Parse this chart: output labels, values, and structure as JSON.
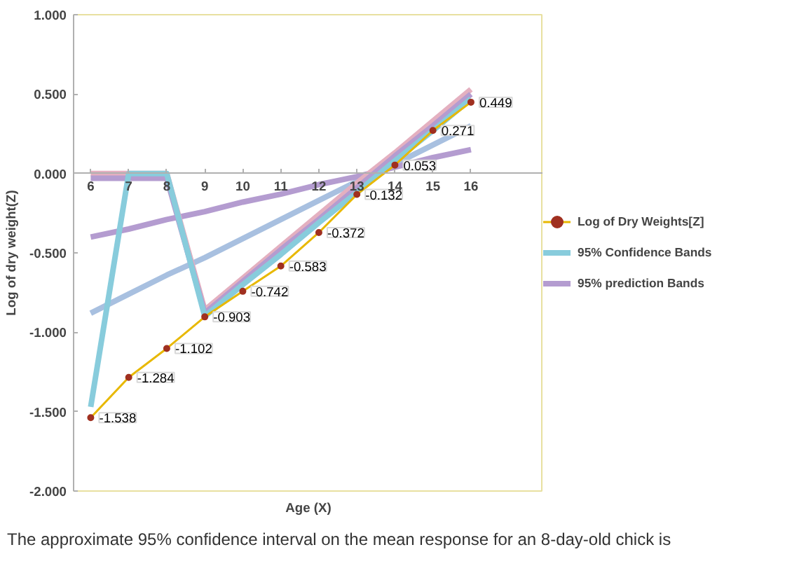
{
  "chart_data": {
    "type": "line",
    "xlabel": "Age (X)",
    "ylabel": "Log of dry weight(Z)",
    "x": [
      6,
      7,
      8,
      9,
      10,
      11,
      12,
      13,
      14,
      15,
      16
    ],
    "xlim": [
      5.55,
      17.9
    ],
    "xticks": [
      6,
      7,
      8,
      9,
      10,
      11,
      12,
      13,
      14,
      15,
      16
    ],
    "ylim": [
      -2,
      1
    ],
    "yticks": [
      {
        "value": -2,
        "label": "-2.000"
      },
      {
        "value": -1.5,
        "label": "-1.500"
      },
      {
        "value": -1,
        "label": "-1.000"
      },
      {
        "value": -0.5,
        "label": "-0.500"
      },
      {
        "value": 0,
        "label": "0.000"
      },
      {
        "value": 0.5,
        "label": "0.500"
      },
      {
        "value": 1,
        "label": "1.000"
      }
    ],
    "grid": false,
    "legend": "right",
    "annotations": [
      "The approximate 95% confidence interval on the mean response for an 8-day-old chick is"
    ],
    "series": [
      {
        "color": "#a8c0e0",
        "values": [
          -0.88,
          -0.76,
          -0.64,
          -0.53,
          -0.41,
          -0.29,
          -0.17,
          -0.05,
          0.06,
          0.18,
          0.3
        ]
      },
      {
        "color": "#b49cd0",
        "values": [
          -0.4,
          -0.35,
          -0.29,
          -0.24,
          -0.18,
          -0.13,
          -0.07,
          -0.02,
          0.04,
          0.1,
          0.15
        ]
      },
      {
        "color": "#e4b0c0",
        "values": [
          0,
          0,
          0,
          -0.86,
          -0.66,
          -0.46,
          -0.26,
          -0.06,
          0.13,
          0.33,
          0.53
        ]
      },
      {
        "name": "95% prediction Bands",
        "color": "#b49cd0",
        "values": [
          -0.03,
          -0.03,
          -0.03,
          -0.88,
          -0.68,
          -0.48,
          -0.29,
          -0.09,
          0.11,
          0.3,
          0.5
        ]
      },
      {
        "name": "95% Confidence Bands",
        "color": "#88ccdc",
        "values": [
          -1.47,
          0,
          0,
          -0.9,
          -0.7,
          -0.51,
          -0.31,
          -0.12,
          0.08,
          0.27,
          0.47
        ]
      },
      {
        "name": "Log of Dry Weights[Z]",
        "color": "#e8b800",
        "marker": "circle",
        "values": [
          -1.538,
          -1.284,
          -1.102,
          -0.903,
          -0.742,
          -0.583,
          -0.372,
          -0.132,
          0.053,
          0.271,
          0.449
        ],
        "value_labels": [
          "-1.538",
          "-1.284",
          "-1.102",
          "-0.903",
          "-0.742",
          "-0.583",
          "-0.372",
          "-0.132",
          "0.053",
          "0.271",
          "0.449"
        ]
      }
    ]
  }
}
